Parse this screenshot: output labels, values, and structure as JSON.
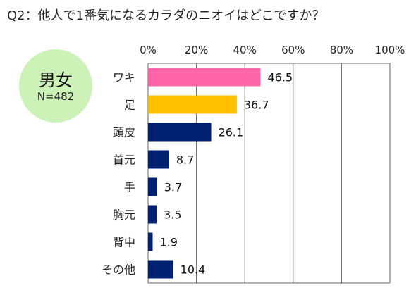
{
  "chart_data": {
    "type": "bar",
    "orientation": "horizontal",
    "title": "Q2：他人で1番気になるカラダのニオイはどこですか？",
    "categories": [
      "ワキ",
      "足",
      "頭皮",
      "首元",
      "手",
      "胸元",
      "背中",
      "その他"
    ],
    "values": [
      46.5,
      36.7,
      26.1,
      8.7,
      3.7,
      3.5,
      1.9,
      10.4
    ],
    "bar_colors": [
      "#ff66aa",
      "#ffc000",
      "#002070",
      "#002070",
      "#002070",
      "#002070",
      "#002070",
      "#002070"
    ],
    "xlim": [
      0,
      100
    ],
    "x_ticks": [
      "0%",
      "20%",
      "40%",
      "60%",
      "80%",
      "100%"
    ],
    "x_axis_position": "top",
    "grid": true,
    "xlabel": "",
    "ylabel": ""
  },
  "badge": {
    "main": "男女",
    "sub": "N=482",
    "color": "#ccf2b8"
  }
}
